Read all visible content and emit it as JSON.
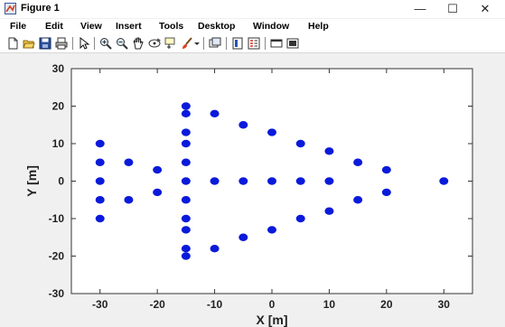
{
  "window": {
    "title": "Figure 1",
    "minimize_glyph": "—",
    "maximize_glyph": "☐",
    "close_glyph": "✕"
  },
  "menubar": {
    "items": [
      "File",
      "Edit",
      "View",
      "Insert",
      "Tools",
      "Desktop",
      "Window",
      "Help"
    ]
  },
  "toolbar": {
    "icons": [
      "new-figure-icon",
      "open-file-icon",
      "save-figure-icon",
      "print-figure-icon",
      "edit-plot-icon",
      "zoom-in-icon",
      "zoom-out-icon",
      "pan-icon",
      "rotate-3d-icon",
      "data-cursor-icon",
      "brush-icon",
      "brush-dropdown-icon",
      "link-plot-icon",
      "insert-colorbar-icon",
      "insert-legend-icon",
      "hide-plot-tools-icon",
      "show-plot-tools-icon"
    ]
  },
  "colors": {
    "marker": "#0a1adb",
    "axes_bg": "#ffffff",
    "figure_bg": "#f0f0f0"
  },
  "chart_data": {
    "type": "scatter",
    "title": "",
    "xlabel": "X [m]",
    "ylabel": "Y [m]",
    "xlim": [
      -35,
      35
    ],
    "ylim": [
      -30,
      30
    ],
    "xticks": [
      -30,
      -20,
      -10,
      0,
      10,
      20,
      30
    ],
    "yticks": [
      -30,
      -20,
      -10,
      0,
      10,
      20,
      30
    ],
    "grid": false,
    "series": [
      {
        "marker": "filled-circle",
        "x": [
          -30,
          -30,
          -30,
          -30,
          -30,
          -25,
          -25,
          -20,
          -20,
          -15,
          -15,
          -15,
          -15,
          -15,
          -15,
          -15,
          -15,
          -15,
          -15,
          -15,
          -10,
          -10,
          -10,
          -5,
          -5,
          -5,
          0,
          0,
          0,
          5,
          5,
          5,
          10,
          10,
          10,
          15,
          15,
          20,
          20,
          30
        ],
        "y": [
          10,
          5,
          0,
          -5,
          -10,
          5,
          -5,
          3,
          -3,
          20,
          18,
          13,
          10,
          5,
          -5,
          -10,
          -13,
          -18,
          -20,
          0,
          18,
          0,
          -18,
          15,
          0,
          -15,
          13,
          0,
          -13,
          10,
          0,
          -10,
          8,
          0,
          -8,
          5,
          -5,
          3,
          -3,
          0
        ]
      }
    ]
  }
}
